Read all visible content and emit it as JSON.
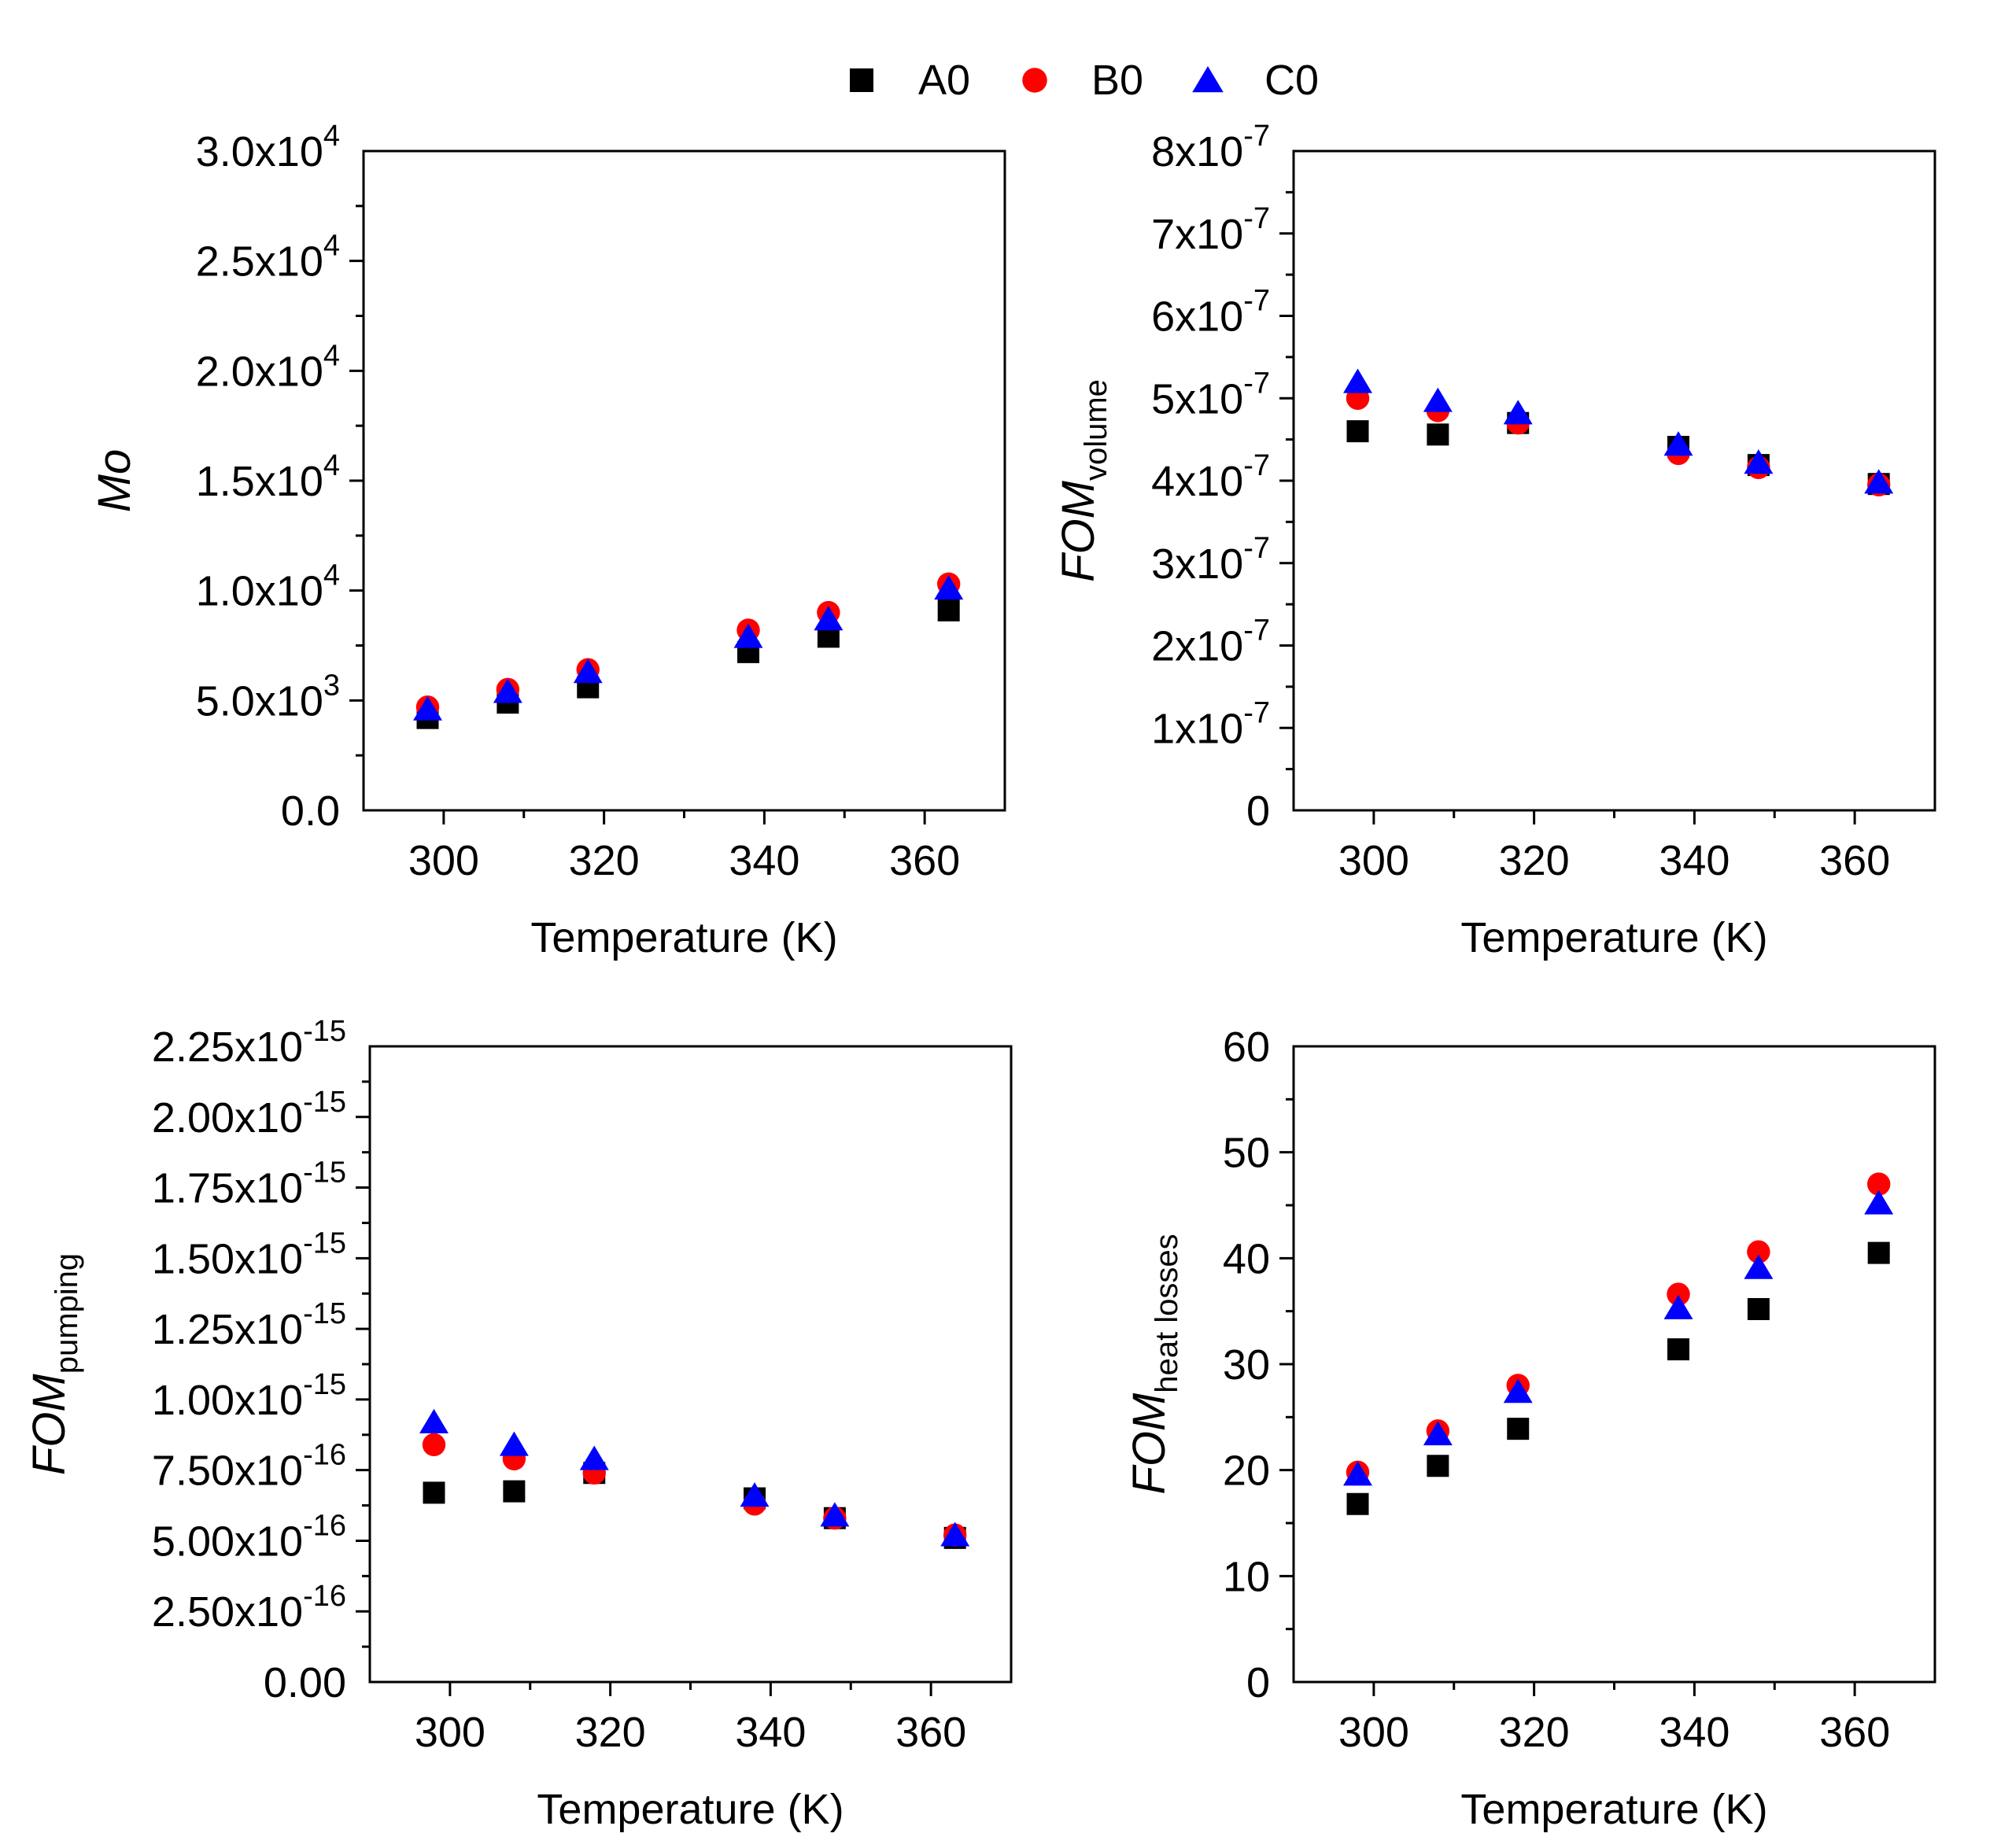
{
  "legend": {
    "entries": [
      {
        "label": "A0",
        "marker": "square",
        "color": "#000000"
      },
      {
        "label": "B0",
        "marker": "circle",
        "color": "#ff0000"
      },
      {
        "label": "C0",
        "marker": "triangle",
        "color": "#0000ff"
      }
    ]
  },
  "chart_data": [
    {
      "type": "scatter",
      "xlabel": "Temperature (K)",
      "ylabel": {
        "main": "Mo",
        "sub": ""
      },
      "xlim": [
        290,
        370
      ],
      "ylim": [
        0,
        30000
      ],
      "xticks": [
        {
          "v": 300,
          "label": "300"
        },
        {
          "v": 320,
          "label": "320"
        },
        {
          "v": 340,
          "label": "340"
        },
        {
          "v": 360,
          "label": "360"
        }
      ],
      "yticks": [
        {
          "v": 0,
          "mant": "0.0",
          "exp": ""
        },
        {
          "v": 5000,
          "mant": "5.0x10",
          "exp": "3"
        },
        {
          "v": 10000,
          "mant": "1.0x10",
          "exp": "4"
        },
        {
          "v": 15000,
          "mant": "1.5x10",
          "exp": "4"
        },
        {
          "v": 20000,
          "mant": "2.0x10",
          "exp": "4"
        },
        {
          "v": 25000,
          "mant": "2.5x10",
          "exp": "4"
        },
        {
          "v": 30000,
          "mant": "3.0x10",
          "exp": "4"
        }
      ],
      "x": [
        298,
        308,
        318,
        338,
        348,
        363
      ],
      "series": [
        {
          "name": "A0",
          "values": [
            4200,
            4900,
            5600,
            7200,
            7900,
            9100
          ]
        },
        {
          "name": "B0",
          "values": [
            4700,
            5500,
            6400,
            8200,
            9000,
            10300
          ]
        },
        {
          "name": "C0",
          "values": [
            4600,
            5400,
            6300,
            7900,
            8700,
            10100
          ]
        }
      ]
    },
    {
      "type": "scatter",
      "xlabel": "Temperature (K)",
      "ylabel": {
        "main": "FOM",
        "sub": "volume"
      },
      "xlim": [
        290,
        370
      ],
      "ylim": [
        0,
        8e-07
      ],
      "xticks": [
        {
          "v": 300,
          "label": "300"
        },
        {
          "v": 320,
          "label": "320"
        },
        {
          "v": 340,
          "label": "340"
        },
        {
          "v": 360,
          "label": "360"
        }
      ],
      "yticks": [
        {
          "v": 0,
          "mant": "0",
          "exp": ""
        },
        {
          "v": 1e-07,
          "mant": "1x10",
          "exp": "-7"
        },
        {
          "v": 2e-07,
          "mant": "2x10",
          "exp": "-7"
        },
        {
          "v": 3e-07,
          "mant": "3x10",
          "exp": "-7"
        },
        {
          "v": 4e-07,
          "mant": "4x10",
          "exp": "-7"
        },
        {
          "v": 5e-07,
          "mant": "5x10",
          "exp": "-7"
        },
        {
          "v": 6e-07,
          "mant": "6x10",
          "exp": "-7"
        },
        {
          "v": 7e-07,
          "mant": "7x10",
          "exp": "-7"
        },
        {
          "v": 8e-07,
          "mant": "8x10",
          "exp": "-7"
        }
      ],
      "x": [
        298,
        308,
        318,
        338,
        348,
        363
      ],
      "series": [
        {
          "name": "A0",
          "values": [
            4.6e-07,
            4.56e-07,
            4.7e-07,
            4.41e-07,
            4.19e-07,
            3.96e-07
          ]
        },
        {
          "name": "B0",
          "values": [
            5e-07,
            4.85e-07,
            4.7e-07,
            4.33e-07,
            4.16e-07,
            3.95e-07
          ]
        },
        {
          "name": "C0",
          "values": [
            5.2e-07,
            4.97e-07,
            4.82e-07,
            4.44e-07,
            4.22e-07,
            3.98e-07
          ]
        }
      ]
    },
    {
      "type": "scatter",
      "xlabel": "Temperature (K)",
      "ylabel": {
        "main": "FOM",
        "sub": "pumping"
      },
      "xlim": [
        290,
        370
      ],
      "ylim": [
        0,
        2.25e-15
      ],
      "xticks": [
        {
          "v": 300,
          "label": "300"
        },
        {
          "v": 320,
          "label": "320"
        },
        {
          "v": 340,
          "label": "340"
        },
        {
          "v": 360,
          "label": "360"
        }
      ],
      "yticks": [
        {
          "v": 0,
          "mant": "0.00",
          "exp": ""
        },
        {
          "v": 2.5e-16,
          "mant": "2.50x10",
          "exp": "-16"
        },
        {
          "v": 5e-16,
          "mant": "5.00x10",
          "exp": "-16"
        },
        {
          "v": 7.5e-16,
          "mant": "7.50x10",
          "exp": "-16"
        },
        {
          "v": 1e-15,
          "mant": "1.00x10",
          "exp": "-15"
        },
        {
          "v": 1.25e-15,
          "mant": "1.25x10",
          "exp": "-15"
        },
        {
          "v": 1.5e-15,
          "mant": "1.50x10",
          "exp": "-15"
        },
        {
          "v": 1.75e-15,
          "mant": "1.75x10",
          "exp": "-15"
        },
        {
          "v": 2e-15,
          "mant": "2.00x10",
          "exp": "-15"
        },
        {
          "v": 2.25e-15,
          "mant": "2.25x10",
          "exp": "-15"
        }
      ],
      "x": [
        298,
        308,
        318,
        338,
        348,
        363
      ],
      "series": [
        {
          "name": "A0",
          "values": [
            6.7e-16,
            6.75e-16,
            7.4e-16,
            6.5e-16,
            5.8e-16,
            5.1e-16
          ]
        },
        {
          "name": "B0",
          "values": [
            8.4e-16,
            7.9e-16,
            7.4e-16,
            6.3e-16,
            5.8e-16,
            5.2e-16
          ]
        },
        {
          "name": "C0",
          "values": [
            9.2e-16,
            8.4e-16,
            7.9e-16,
            6.6e-16,
            5.9e-16,
            5.2e-16
          ]
        }
      ]
    },
    {
      "type": "scatter",
      "xlabel": "Temperature (K)",
      "ylabel": {
        "main": "FOM",
        "sub": "heat losses"
      },
      "xlim": [
        290,
        370
      ],
      "ylim": [
        0,
        60
      ],
      "xticks": [
        {
          "v": 300,
          "label": "300"
        },
        {
          "v": 320,
          "label": "320"
        },
        {
          "v": 340,
          "label": "340"
        },
        {
          "v": 360,
          "label": "360"
        }
      ],
      "yticks": [
        {
          "v": 0,
          "mant": "0",
          "exp": ""
        },
        {
          "v": 10,
          "mant": "10",
          "exp": ""
        },
        {
          "v": 20,
          "mant": "20",
          "exp": ""
        },
        {
          "v": 30,
          "mant": "30",
          "exp": ""
        },
        {
          "v": 40,
          "mant": "40",
          "exp": ""
        },
        {
          "v": 50,
          "mant": "50",
          "exp": ""
        },
        {
          "v": 60,
          "mant": "60",
          "exp": ""
        }
      ],
      "x": [
        298,
        308,
        318,
        338,
        348,
        363
      ],
      "series": [
        {
          "name": "A0",
          "values": [
            16.8,
            20.4,
            23.9,
            31.4,
            35.2,
            40.5
          ]
        },
        {
          "name": "B0",
          "values": [
            19.8,
            23.7,
            28.0,
            36.6,
            40.6,
            47.0
          ]
        },
        {
          "name": "C0",
          "values": [
            19.6,
            23.4,
            27.4,
            35.3,
            39.1,
            45.2
          ]
        }
      ]
    }
  ]
}
